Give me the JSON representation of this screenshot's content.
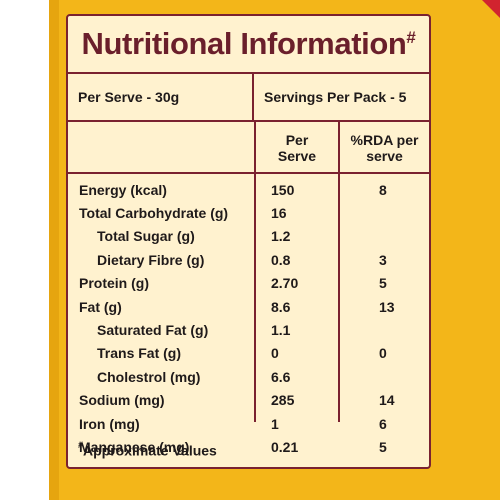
{
  "panel": {
    "title": "Nutritional Information",
    "title_mark": "#",
    "per_serve": "Per Serve - 30g",
    "servings_per_pack": "Servings Per Pack - 5",
    "footnote_mark": "#",
    "footnote": "Approximate Values"
  },
  "columns": {
    "per_serve_line1": "Per",
    "per_serve_line2": "Serve",
    "rda_line1": "%RDA per",
    "rda_line2": "serve"
  },
  "rows": [
    {
      "nutrient": "Energy (kcal)",
      "per_serve": "150",
      "rda": "8",
      "indent": false
    },
    {
      "nutrient": "Total Carbohydrate (g)",
      "per_serve": "16",
      "rda": "",
      "indent": false
    },
    {
      "nutrient": "Total Sugar (g)",
      "per_serve": "1.2",
      "rda": "",
      "indent": true
    },
    {
      "nutrient": "Dietary Fibre (g)",
      "per_serve": "0.8",
      "rda": "3",
      "indent": true
    },
    {
      "nutrient": "Protein (g)",
      "per_serve": "2.70",
      "rda": "5",
      "indent": false
    },
    {
      "nutrient": "Fat (g)",
      "per_serve": "8.6",
      "rda": "13",
      "indent": false
    },
    {
      "nutrient": "Saturated Fat (g)",
      "per_serve": "1.1",
      "rda": "",
      "indent": true
    },
    {
      "nutrient": "Trans Fat (g)",
      "per_serve": "0",
      "rda": "0",
      "indent": true
    },
    {
      "nutrient": "Cholestrol (mg)",
      "per_serve": "6.6",
      "rda": "",
      "indent": true
    },
    {
      "nutrient": "Sodium (mg)",
      "per_serve": "285",
      "rda": "14",
      "indent": false
    },
    {
      "nutrient": "Iron (mg)",
      "per_serve": "1",
      "rda": "6",
      "indent": false
    },
    {
      "nutrient": "Manganese (mg)",
      "per_serve": "0.21",
      "rda": "5",
      "indent": false
    }
  ],
  "colors": {
    "package_yellow": "#f3b619",
    "panel_cream": "#fff2cf",
    "border_maroon": "#7a2230",
    "title_maroon": "#6a1f2b",
    "corner_red": "#d1242f"
  }
}
